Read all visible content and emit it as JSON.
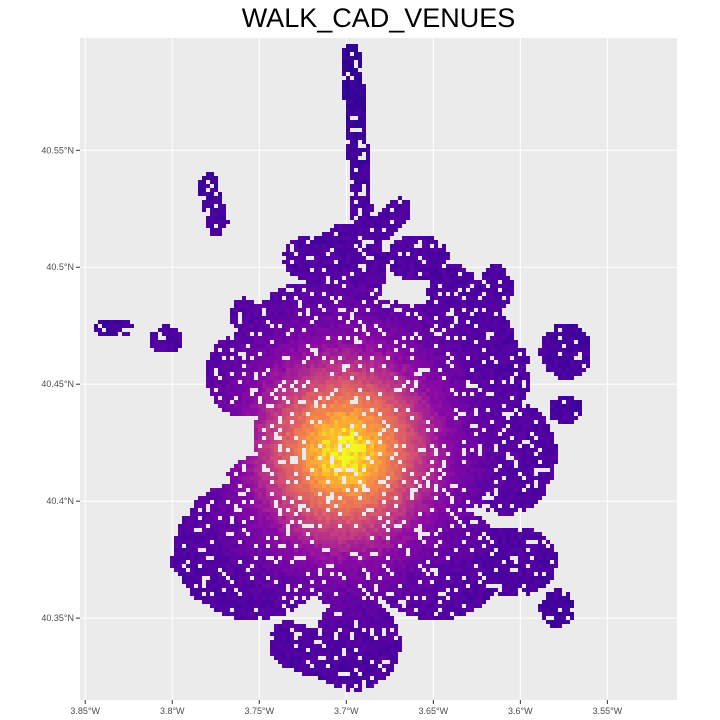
{
  "title": "WALK_CAD_VENUES",
  "chart_data": {
    "type": "heatmap",
    "title": "WALK_CAD_VENUES",
    "xlabel": "",
    "ylabel": "",
    "x_ticks": [
      {
        "value": -3.85,
        "label": "3.85°W"
      },
      {
        "value": -3.8,
        "label": "3.8°W"
      },
      {
        "value": -3.75,
        "label": "3.75°W"
      },
      {
        "value": -3.7,
        "label": "3.7°W"
      },
      {
        "value": -3.65,
        "label": "3.65°W"
      },
      {
        "value": -3.6,
        "label": "3.6°W"
      },
      {
        "value": -3.55,
        "label": "3.55°W"
      }
    ],
    "y_ticks": [
      {
        "value": 40.55,
        "label": "40.55°N"
      },
      {
        "value": 40.5,
        "label": "40.5°N"
      },
      {
        "value": 40.45,
        "label": "40.45°N"
      },
      {
        "value": 40.4,
        "label": "40.4°N"
      },
      {
        "value": 40.35,
        "label": "40.35°N"
      }
    ],
    "xlim": [
      -3.853,
      -3.51
    ],
    "ylim": [
      40.315,
      40.598
    ],
    "grid": true,
    "legend": "none",
    "colormap": "plasma",
    "colors": {
      "panel_background": "#EBEBEB",
      "grid_major": "#FFFFFF",
      "low": "#0D0887",
      "mid_low": "#7E03A8",
      "mid": "#CC4778",
      "mid_high": "#F89540",
      "high": "#F0F921"
    },
    "peak": {
      "lon": -3.702,
      "lat": 40.422
    },
    "spread_deg": [
      0.035,
      0.028
    ]
  }
}
